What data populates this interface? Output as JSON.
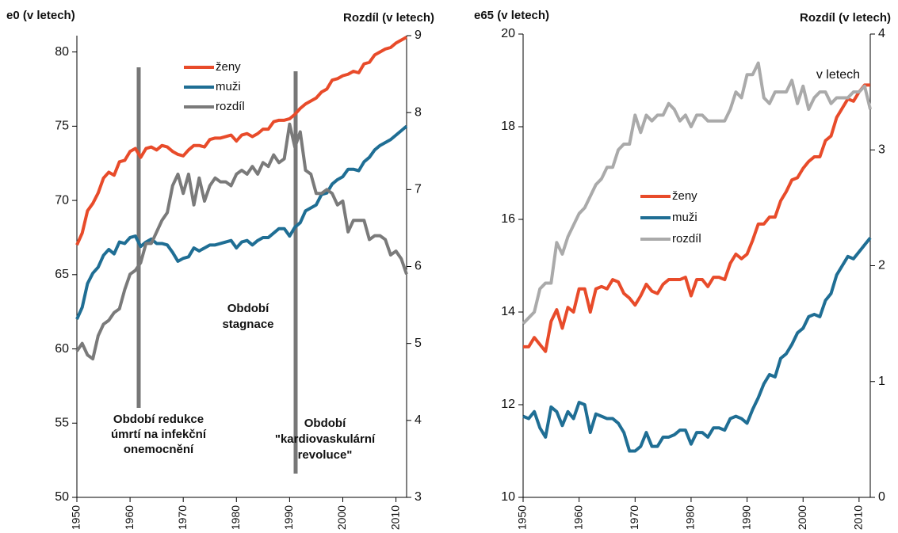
{
  "chart_data": [
    {
      "type": "line",
      "y_label": "e0 (v letech)",
      "y2_label": "Rozdíl (v letech)",
      "x": [
        1950,
        1951,
        1952,
        1953,
        1954,
        1955,
        1956,
        1957,
        1958,
        1959,
        1960,
        1961,
        1962,
        1963,
        1964,
        1965,
        1966,
        1967,
        1968,
        1969,
        1970,
        1971,
        1972,
        1973,
        1974,
        1975,
        1976,
        1977,
        1978,
        1979,
        1980,
        1981,
        1982,
        1983,
        1984,
        1985,
        1986,
        1987,
        1988,
        1989,
        1990,
        1991,
        1992,
        1993,
        1994,
        1995,
        1996,
        1997,
        1998,
        1999,
        2000,
        2001,
        2002,
        2003,
        2004,
        2005,
        2006,
        2007,
        2008,
        2009,
        2010,
        2011,
        2012
      ],
      "xlim": [
        1950,
        2012
      ],
      "xticks": [
        1950,
        1960,
        1970,
        1980,
        1990,
        2000,
        2010
      ],
      "ylim": [
        50,
        81.1
      ],
      "yticks": [
        50,
        55,
        60,
        65,
        70,
        75,
        80
      ],
      "y2lim": [
        3,
        9
      ],
      "y2ticks": [
        3,
        4,
        5,
        6,
        7,
        8,
        9
      ],
      "series": [
        {
          "name": "ženy",
          "color": "#e84b2a",
          "values": [
            67,
            67.8,
            69.3,
            69.8,
            70.5,
            71.5,
            71.9,
            71.7,
            72.6,
            72.7,
            73.3,
            73.5,
            72.9,
            73.5,
            73.6,
            73.4,
            73.7,
            73.6,
            73.3,
            73.1,
            73.0,
            73.4,
            73.7,
            73.7,
            73.6,
            74.1,
            74.2,
            74.2,
            74.3,
            74.4,
            74.0,
            74.4,
            74.5,
            74.3,
            74.5,
            74.8,
            74.8,
            75.3,
            75.4,
            75.4,
            75.5,
            75.8,
            76.2,
            76.5,
            76.7,
            76.9,
            77.3,
            77.5,
            78.1,
            78.2,
            78.4,
            78.5,
            78.7,
            78.6,
            79.2,
            79.3,
            79.8,
            80.0,
            80.2,
            80.3,
            80.6,
            80.8,
            81.0
          ]
        },
        {
          "name": "muži",
          "color": "#1f6e94",
          "values": [
            62,
            62.8,
            64.4,
            65.1,
            65.5,
            66.3,
            66.7,
            66.4,
            67.2,
            67.1,
            67.5,
            67.6,
            66.9,
            67.2,
            67.4,
            67.1,
            67.1,
            67.0,
            66.5,
            65.9,
            66.1,
            66.2,
            66.8,
            66.6,
            66.8,
            67.0,
            67.0,
            67.1,
            67.2,
            67.3,
            66.8,
            67.2,
            67.3,
            67.0,
            67.3,
            67.5,
            67.5,
            67.8,
            68.1,
            68.1,
            67.6,
            68.2,
            68.5,
            69.3,
            69.5,
            69.7,
            70.4,
            70.5,
            71.1,
            71.4,
            71.6,
            72.1,
            72.1,
            72.0,
            72.6,
            72.9,
            73.4,
            73.7,
            73.9,
            74.1,
            74.4,
            74.7,
            75.0
          ]
        },
        {
          "name": "rozdíl",
          "color": "#7a7a7a",
          "axis": "y2",
          "values": [
            4.9,
            5.0,
            4.85,
            4.8,
            5.1,
            5.25,
            5.3,
            5.4,
            5.45,
            5.7,
            5.9,
            5.95,
            6.05,
            6.3,
            6.3,
            6.45,
            6.6,
            6.7,
            7.05,
            7.2,
            6.95,
            7.2,
            6.8,
            7.15,
            6.85,
            7.05,
            7.15,
            7.1,
            7.1,
            7.05,
            7.2,
            7.25,
            7.2,
            7.3,
            7.2,
            7.35,
            7.3,
            7.45,
            7.35,
            7.4,
            7.85,
            7.55,
            7.75,
            7.25,
            7.2,
            6.95,
            6.95,
            7.0,
            6.95,
            6.8,
            6.85,
            6.45,
            6.6,
            6.6,
            6.6,
            6.35,
            6.4,
            6.4,
            6.35,
            6.15,
            6.2,
            6.1,
            5.9
          ]
        }
      ],
      "annotations": [
        {
          "lines": [
            "Období redukce",
            "úmrtí na infekční",
            "onemocnění"
          ]
        },
        {
          "lines": [
            "Období",
            "stagnace"
          ]
        },
        {
          "lines": [
            "Období",
            "\"kardiovaskulární",
            "revoluce\""
          ]
        }
      ]
    },
    {
      "type": "line",
      "y_label": "e65 (v letech)",
      "y2_label": "Rozdíl (v letech)",
      "x": [
        1950,
        1951,
        1952,
        1953,
        1954,
        1955,
        1956,
        1957,
        1958,
        1959,
        1960,
        1961,
        1962,
        1963,
        1964,
        1965,
        1966,
        1967,
        1968,
        1969,
        1970,
        1971,
        1972,
        1973,
        1974,
        1975,
        1976,
        1977,
        1978,
        1979,
        1980,
        1981,
        1982,
        1983,
        1984,
        1985,
        1986,
        1987,
        1988,
        1989,
        1990,
        1991,
        1992,
        1993,
        1994,
        1995,
        1996,
        1997,
        1998,
        1999,
        2000,
        2001,
        2002,
        2003,
        2004,
        2005,
        2006,
        2007,
        2008,
        2009,
        2010,
        2011,
        2012
      ],
      "xlim": [
        1950,
        2012
      ],
      "xticks": [
        1950,
        1960,
        1970,
        1980,
        1990,
        2000,
        2010
      ],
      "ylim": [
        10,
        20
      ],
      "yticks": [
        10,
        12,
        14,
        16,
        18,
        20
      ],
      "y2lim": [
        0,
        4
      ],
      "y2ticks": [
        0,
        1,
        2,
        3,
        4
      ],
      "series": [
        {
          "name": "ženy",
          "color": "#e84b2a",
          "values": [
            13.25,
            13.25,
            13.45,
            13.3,
            13.15,
            13.8,
            14.05,
            13.65,
            14.1,
            14.0,
            14.5,
            14.5,
            14.0,
            14.5,
            14.55,
            14.5,
            14.7,
            14.65,
            14.4,
            14.3,
            14.15,
            14.35,
            14.6,
            14.45,
            14.4,
            14.6,
            14.7,
            14.7,
            14.7,
            14.75,
            14.35,
            14.7,
            14.7,
            14.55,
            14.75,
            14.75,
            14.7,
            15.05,
            15.25,
            15.15,
            15.25,
            15.55,
            15.9,
            15.9,
            16.05,
            16.05,
            16.4,
            16.6,
            16.85,
            16.9,
            17.1,
            17.25,
            17.35,
            17.35,
            17.7,
            17.8,
            18.2,
            18.4,
            18.6,
            18.55,
            18.75,
            18.9,
            18.9
          ]
        },
        {
          "name": "muži",
          "color": "#1f6e94",
          "values": [
            11.75,
            11.7,
            11.85,
            11.5,
            11.3,
            11.95,
            11.85,
            11.55,
            11.85,
            11.7,
            12.05,
            12.0,
            11.4,
            11.8,
            11.75,
            11.7,
            11.7,
            11.6,
            11.4,
            11.0,
            11.0,
            11.1,
            11.4,
            11.1,
            11.1,
            11.3,
            11.3,
            11.35,
            11.45,
            11.45,
            11.15,
            11.4,
            11.4,
            11.3,
            11.5,
            11.5,
            11.45,
            11.7,
            11.75,
            11.7,
            11.6,
            11.9,
            12.15,
            12.45,
            12.65,
            12.6,
            13.0,
            13.1,
            13.3,
            13.55,
            13.65,
            13.9,
            13.95,
            13.9,
            14.25,
            14.4,
            14.8,
            15.0,
            15.2,
            15.15,
            15.3,
            15.45,
            15.6
          ]
        },
        {
          "name": "rozdíl",
          "color": "#aaaaaa",
          "axis": "y2",
          "values": [
            1.5,
            1.55,
            1.6,
            1.8,
            1.85,
            1.85,
            2.2,
            2.1,
            2.25,
            2.35,
            2.45,
            2.5,
            2.6,
            2.7,
            2.75,
            2.85,
            2.85,
            3.0,
            3.05,
            3.05,
            3.3,
            3.15,
            3.3,
            3.25,
            3.3,
            3.3,
            3.4,
            3.35,
            3.25,
            3.3,
            3.2,
            3.3,
            3.3,
            3.25,
            3.25,
            3.25,
            3.25,
            3.35,
            3.5,
            3.45,
            3.65,
            3.65,
            3.75,
            3.45,
            3.4,
            3.5,
            3.5,
            3.5,
            3.6,
            3.4,
            3.55,
            3.35,
            3.45,
            3.5,
            3.5,
            3.4,
            3.45,
            3.45,
            3.45,
            3.5,
            3.5,
            3.55,
            3.35
          ]
        }
      ],
      "annotations": [
        {
          "lines": [
            "v letech"
          ]
        }
      ]
    }
  ]
}
